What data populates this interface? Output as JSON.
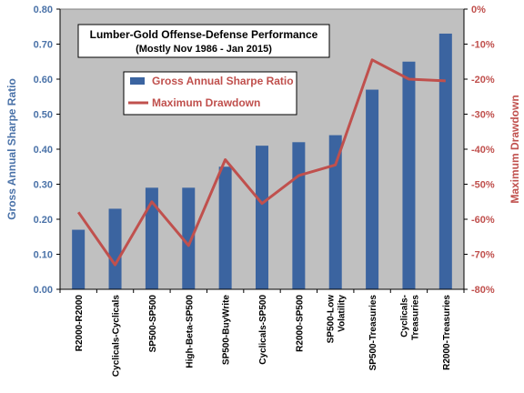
{
  "chart_data": {
    "type": "bar",
    "title": "Lumber-Gold Offense-Defense Performance",
    "subtitle": "(Mostly Nov 1986 - Jan 2015)",
    "categories": [
      [
        "R2000-R2000"
      ],
      [
        "Cyclicals-Cyclicals"
      ],
      [
        "SP500-SP500"
      ],
      [
        "High-Beta-SP500"
      ],
      [
        "SP500-BuyWrite"
      ],
      [
        "Cyclicals-SP500"
      ],
      [
        "R2000-SP500"
      ],
      [
        "SP500-Low",
        "Volatility"
      ],
      [
        "SP500-Treasuries"
      ],
      [
        "Cyclicals-",
        "Treasuries"
      ],
      [
        "R2000-Treasuries"
      ]
    ],
    "series": [
      {
        "name": "Gross Annual Sharpe Ratio",
        "type": "bar",
        "axis": "left",
        "color": "#3b64a0",
        "values": [
          0.17,
          0.23,
          0.29,
          0.29,
          0.35,
          0.41,
          0.42,
          0.44,
          0.57,
          0.65,
          0.73
        ]
      },
      {
        "name": "Maximum Drawdown",
        "type": "line",
        "axis": "right",
        "color": "#c0504d",
        "values": [
          -58,
          -73,
          -55,
          -67.5,
          -43,
          -55.5,
          -47.5,
          -44.5,
          -14.5,
          -20,
          -20.5
        ]
      }
    ],
    "ylabel": "Gross Annual Sharpe Ratio",
    "ylim": [
      0,
      0.8
    ],
    "yticks": [
      "0.00",
      "0.10",
      "0.20",
      "0.30",
      "0.40",
      "0.50",
      "0.60",
      "0.70",
      "0.80"
    ],
    "y2label": "Maximum Drawdown",
    "y2lim": [
      -80,
      0
    ],
    "y2ticks": [
      "-80%",
      "-70%",
      "-60%",
      "-50%",
      "-40%",
      "-30%",
      "-20%",
      "-10%",
      "0%"
    ],
    "legend_position": "upper-left",
    "grid": false,
    "plot_background": "#c0c0c0"
  }
}
